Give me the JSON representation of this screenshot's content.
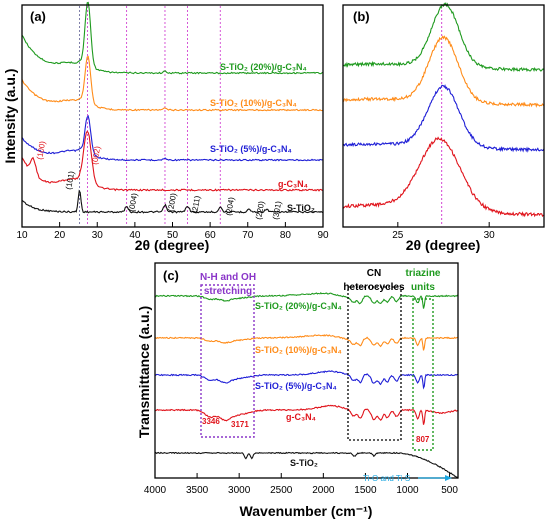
{
  "colors": {
    "green": "#1f9a1f",
    "orange": "#ff8c1a",
    "blue": "#1f1fd6",
    "red": "#e0141c",
    "black": "#111111",
    "purple": "#8a35c8",
    "cyan": "#1aa6e0",
    "magenta": "#d244d2"
  },
  "panel_a": {
    "label": "(a)",
    "xlabel": "2θ (degree)",
    "ylabel": "Intensity (a.u.)",
    "xticks": [
      "10",
      "20",
      "30",
      "40",
      "50",
      "60",
      "70",
      "80",
      "90"
    ]
  },
  "panel_b": {
    "label": "(b)",
    "xlabel": "2θ (degree)",
    "xticks": [
      "25",
      "30"
    ]
  },
  "panel_c": {
    "label": "(c)",
    "xlabel": "Wavenumber (cm⁻¹)",
    "ylabel": "Transmittance (a.u.)",
    "xticks": [
      "4000",
      "3500",
      "3000",
      "2500",
      "2000",
      "1500",
      "1000",
      "500"
    ],
    "box_nh_title": "N-H and OH",
    "box_nh_title2": "stretching",
    "box_cn_title": "CN",
    "box_cn_title2": "heterocycles",
    "box_tri_title": "triazine",
    "box_tri_title2": "units",
    "ann_3346": "3346",
    "ann_3171": "3171",
    "ann_807": "807",
    "tio_label": "Ti-O and Ti-S"
  },
  "series_labels": {
    "s20": "S-TiO₂ (20%)/g-C₃N₄",
    "s10": "S-TiO₂ (10%)/g-C₃N₄",
    "s5": "S-TiO₂ (5%)/g-C₃N₄",
    "gcn": "g-C₃N₄",
    "tio2": "S-TiO₂"
  },
  "peak_labels": {
    "p100": "(100)",
    "p002": "(002)",
    "p101": "(101)",
    "p004": "(004)",
    "p200": "(200)",
    "p211": "(211)",
    "p204": "(204)",
    "p220": "(220)",
    "p301": "(301)"
  },
  "chart_data": [
    {
      "type": "line",
      "panel": "a",
      "xlabel": "2θ (degree)",
      "ylabel": "Intensity (a.u.)",
      "xlim": [
        10,
        90
      ],
      "reference_lines_2theta": [
        25.3,
        27.4,
        37.8,
        48.0,
        54.0,
        62.7
      ],
      "series": [
        {
          "name": "S-TiO₂ (20%)/g-C₃N₄",
          "color": "green",
          "peaks": [
            27.5
          ]
        },
        {
          "name": "S-TiO₂ (10%)/g-C₃N₄",
          "color": "orange",
          "peaks": [
            27.5
          ]
        },
        {
          "name": "S-TiO₂ (5%)/g-C₃N₄",
          "color": "blue",
          "peaks": [
            27.4
          ]
        },
        {
          "name": "g-C₃N₄",
          "color": "red",
          "peaks": [
            13.0,
            27.4
          ]
        },
        {
          "name": "S-TiO₂",
          "color": "black",
          "peaks": [
            25.3,
            37.8,
            48.0,
            54.0,
            62.7,
            70.3,
            75.0
          ]
        }
      ]
    },
    {
      "type": "line",
      "panel": "b",
      "xlabel": "2θ (degree)",
      "xlim": [
        22,
        33
      ],
      "reference_lines_2theta": [
        27.4
      ],
      "series": [
        {
          "name": "S-TiO₂ (20%)/g-C₃N₄",
          "color": "green",
          "peaks": [
            27.6
          ]
        },
        {
          "name": "S-TiO₂ (10%)/g-C₃N₄",
          "color": "orange",
          "peaks": [
            27.5
          ]
        },
        {
          "name": "S-TiO₂ (5%)/g-C₃N₄",
          "color": "blue",
          "peaks": [
            27.5
          ]
        },
        {
          "name": "g-C₃N₄",
          "color": "red",
          "peaks": [
            27.3
          ]
        }
      ]
    },
    {
      "type": "line",
      "panel": "c",
      "xlabel": "Wavenumber (cm⁻¹)",
      "ylabel": "Transmittance (a.u.)",
      "xlim": [
        4000,
        400
      ],
      "series": [
        {
          "name": "S-TiO₂ (20%)/g-C₃N₄",
          "color": "green"
        },
        {
          "name": "S-TiO₂ (10%)/g-C₃N₄",
          "color": "orange"
        },
        {
          "name": "S-TiO₂ (5%)/g-C₃N₄",
          "color": "blue"
        },
        {
          "name": "g-C₃N₄",
          "color": "red",
          "annotated_bands": [
            3346,
            3171,
            807
          ]
        },
        {
          "name": "S-TiO₂",
          "color": "black"
        }
      ]
    }
  ]
}
